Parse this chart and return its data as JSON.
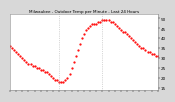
{
  "title": "Milwaukee - Outdoor Temp per Minute - Last 24 Hours",
  "background_color": "#d8d8d8",
  "plot_background": "#ffffff",
  "line_color": "#ff0000",
  "vline_color": "#aaaaaa",
  "vline_x": [
    480,
    900
  ],
  "ylim": [
    14,
    52
  ],
  "yticks": [
    15,
    20,
    25,
    30,
    35,
    40,
    45,
    50
  ],
  "xlim": [
    0,
    1440
  ],
  "x_values": [
    0,
    20,
    40,
    60,
    80,
    100,
    120,
    140,
    160,
    180,
    200,
    220,
    240,
    260,
    280,
    300,
    320,
    340,
    360,
    380,
    400,
    420,
    440,
    460,
    480,
    500,
    520,
    540,
    560,
    580,
    600,
    620,
    640,
    660,
    680,
    700,
    720,
    740,
    760,
    780,
    800,
    820,
    840,
    860,
    880,
    900,
    920,
    940,
    960,
    980,
    1000,
    1020,
    1040,
    1060,
    1080,
    1100,
    1120,
    1140,
    1160,
    1180,
    1200,
    1220,
    1240,
    1260,
    1280,
    1300,
    1320,
    1340,
    1360,
    1380,
    1400,
    1420,
    1440
  ],
  "y_values": [
    36,
    35,
    34,
    33,
    32,
    31,
    30,
    29,
    28,
    27,
    27,
    26,
    26,
    25,
    25,
    24,
    24,
    23,
    23,
    22,
    21,
    20,
    19,
    19,
    18,
    18,
    18,
    19,
    20,
    22,
    25,
    28,
    31,
    34,
    37,
    40,
    42,
    44,
    45,
    46,
    47,
    47,
    47,
    48,
    48,
    49,
    49,
    49,
    49,
    48,
    48,
    47,
    46,
    45,
    44,
    43,
    43,
    42,
    41,
    40,
    39,
    38,
    37,
    36,
    35,
    35,
    34,
    33,
    33,
    32,
    32,
    31,
    31
  ],
  "title_fontsize": 3.0,
  "tick_fontsize": 3.0,
  "linewidth": 0.7,
  "markersize": 1.2
}
